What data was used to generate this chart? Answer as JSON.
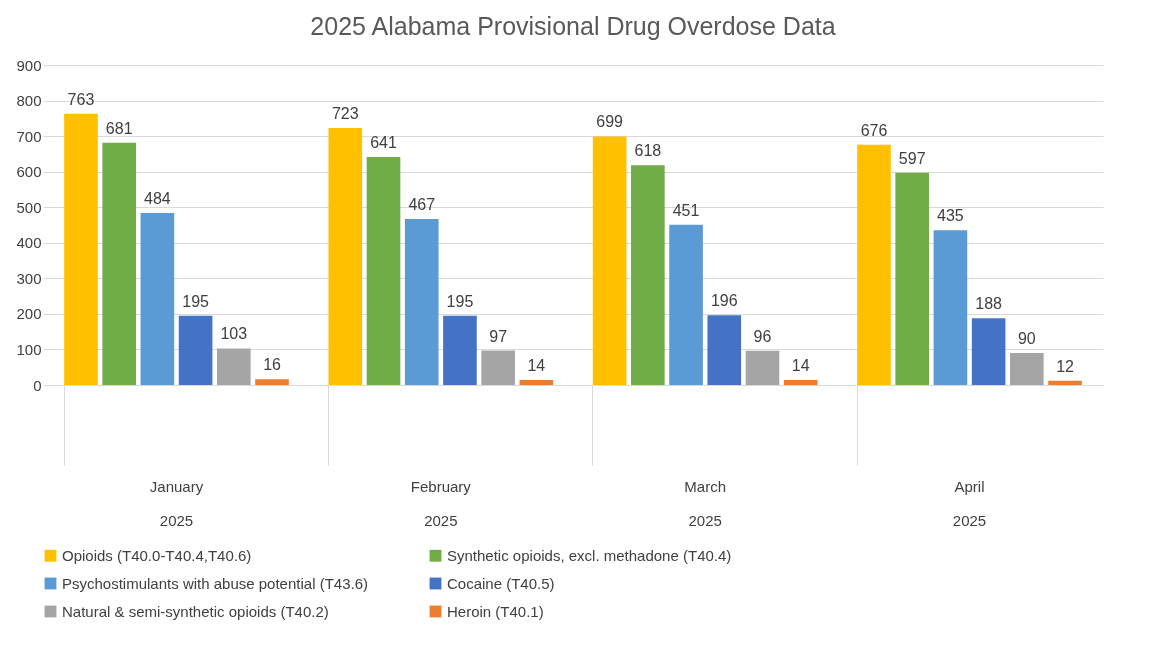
{
  "chart_data": {
    "type": "bar",
    "title": "2025 Alabama Provisional Drug Overdose Data",
    "categories": [
      "January\n2025",
      "February\n2025",
      "March\n2025",
      "April\n2025"
    ],
    "series": [
      {
        "name": "Opioids (T40.0-T40.4,T40.6)",
        "color": "#ffc000",
        "values": [
          763,
          723,
          699,
          676
        ]
      },
      {
        "name": "Synthetic opioids, excl. methadone (T40.4)",
        "color": "#70ad47",
        "values": [
          681,
          641,
          618,
          597
        ]
      },
      {
        "name": "Psychostimulants with abuse potential (T43.6)",
        "color": "#5b9bd5",
        "values": [
          484,
          467,
          451,
          435
        ]
      },
      {
        "name": "Cocaine (T40.5)",
        "color": "#4472c4",
        "values": [
          195,
          195,
          196,
          188
        ]
      },
      {
        "name": "Natural & semi-synthetic opioids (T40.2)",
        "color": "#a5a5a5",
        "values": [
          103,
          97,
          96,
          90
        ]
      },
      {
        "name": "Heroin (T40.1)",
        "color": "#ed7d31",
        "values": [
          16,
          14,
          14,
          12
        ]
      }
    ],
    "ylim": [
      0,
      900
    ],
    "yticks": [
      0,
      100,
      200,
      300,
      400,
      500,
      600,
      700,
      800,
      900
    ],
    "grid": "y",
    "legend": "bottom",
    "data_labels": true
  }
}
